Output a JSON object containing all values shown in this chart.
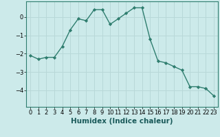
{
  "x": [
    0,
    1,
    2,
    3,
    4,
    5,
    6,
    7,
    8,
    9,
    10,
    11,
    12,
    13,
    14,
    15,
    16,
    17,
    18,
    19,
    20,
    21,
    22,
    23
  ],
  "y": [
    -2.1,
    -2.3,
    -2.2,
    -2.2,
    -1.6,
    -0.7,
    -0.1,
    -0.2,
    0.4,
    0.4,
    -0.4,
    -0.1,
    0.2,
    0.5,
    0.5,
    -1.2,
    -2.4,
    -2.5,
    -2.7,
    -2.9,
    -3.8,
    -3.8,
    -3.9,
    -4.3
  ],
  "line_color": "#2e7d6e",
  "marker": "D",
  "markersize": 2.2,
  "linewidth": 1.0,
  "xlabel": "Humidex (Indice chaleur)",
  "xlabel_fontsize": 7.5,
  "xlabel_fontweight": "bold",
  "bg_color": "#cceaea",
  "grid_color": "#b8d8d8",
  "ylim": [
    -4.9,
    0.85
  ],
  "xlim": [
    -0.5,
    23.5
  ],
  "yticks": [
    -4,
    -3,
    -2,
    -1,
    0
  ],
  "xtick_labels": [
    "0",
    "1",
    "2",
    "3",
    "4",
    "5",
    "6",
    "7",
    "8",
    "9",
    "10",
    "11",
    "12",
    "13",
    "14",
    "15",
    "16",
    "17",
    "18",
    "19",
    "20",
    "21",
    "22",
    "23"
  ],
  "tick_fontsize": 6.0,
  "spine_color": "#888888"
}
